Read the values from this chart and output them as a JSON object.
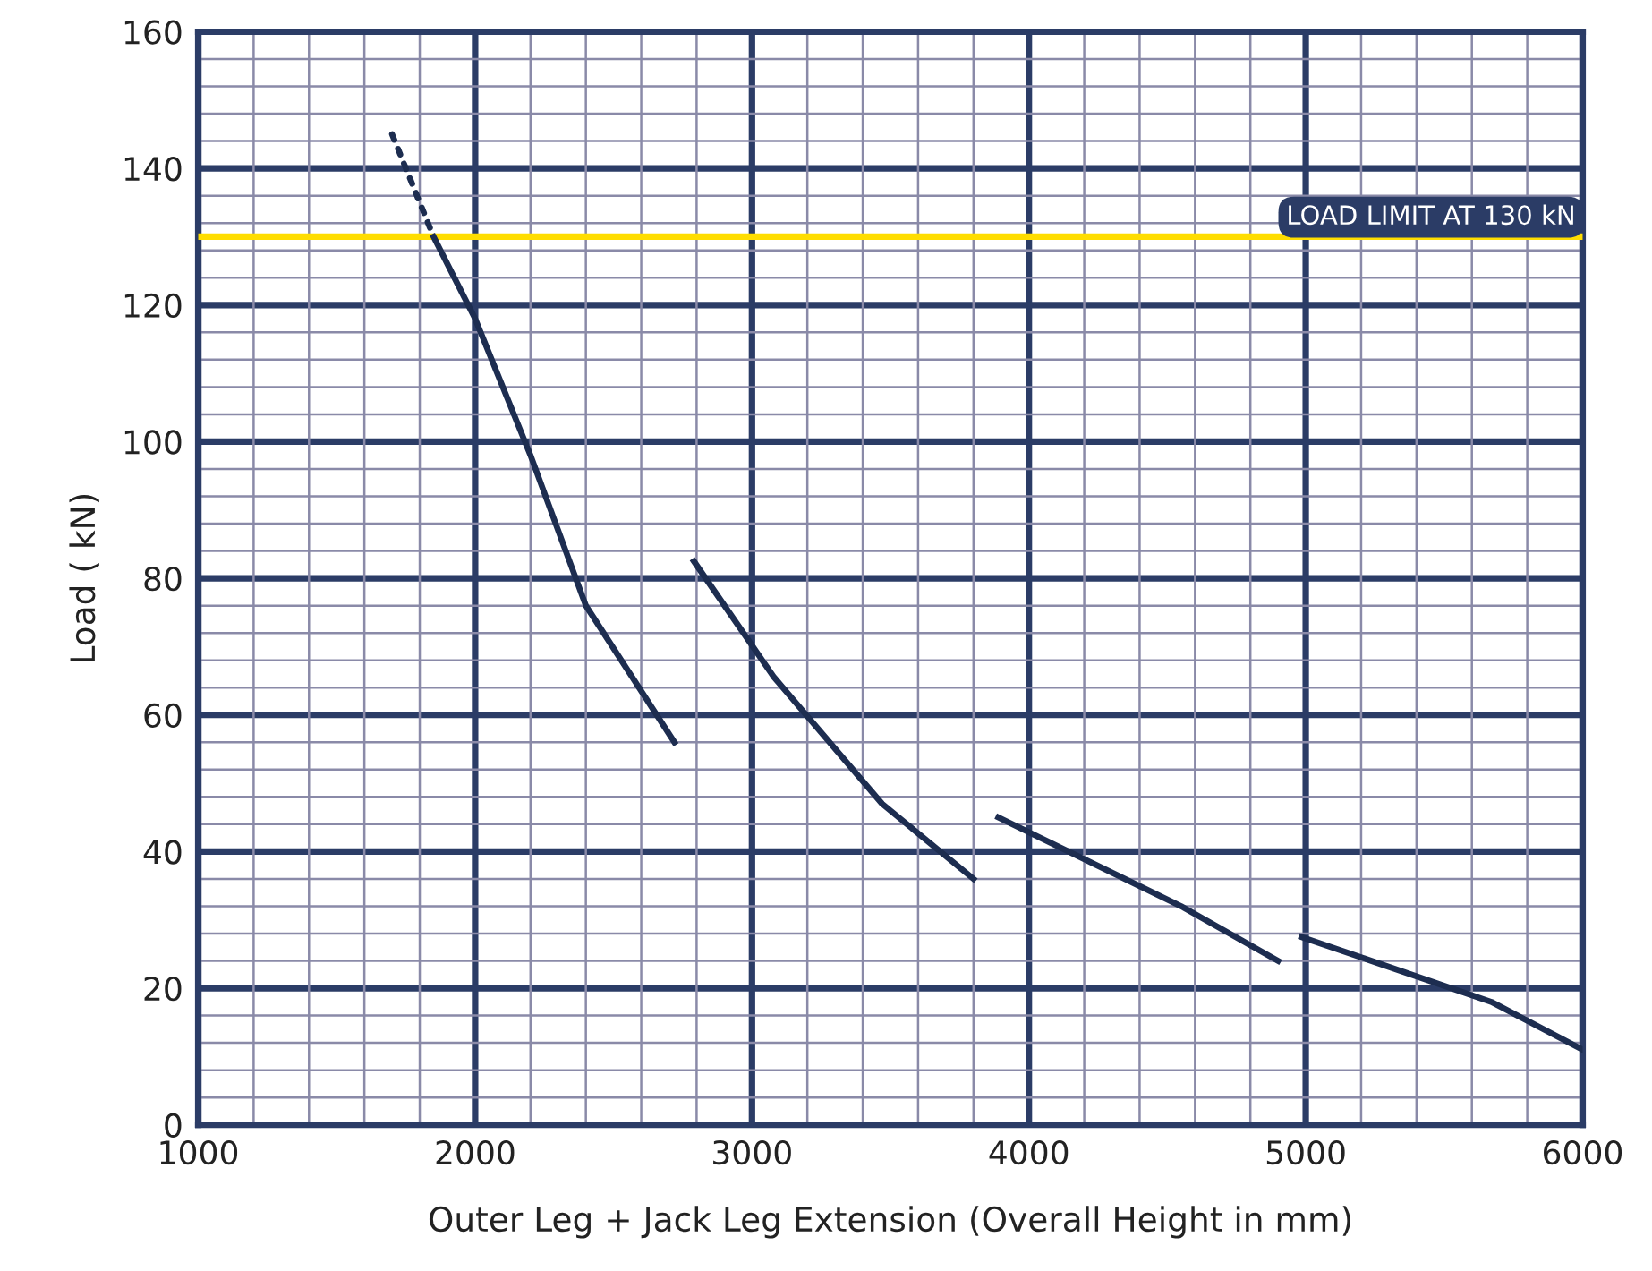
{
  "chart_data": {
    "type": "line",
    "xlabel": "Outer Leg + Jack Leg Extension (Overall Height in mm)",
    "ylabel": "Load ( kN)",
    "series": [
      {
        "color": "#1d2d50",
        "line_style": "dotted",
        "x": [
          1700,
          1850
        ],
        "values": [
          145,
          130
        ]
      },
      {
        "color": "#1d2d50",
        "x": [
          1850,
          2000,
          2200,
          2400,
          2720
        ],
        "values": [
          130,
          118,
          98,
          76,
          56
        ]
      },
      {
        "color": "#1d2d50",
        "x": [
          2790,
          3080,
          3470,
          3800
        ],
        "values": [
          82.5,
          65.5,
          47,
          36
        ]
      },
      {
        "color": "#1d2d50",
        "x": [
          3890,
          4550,
          4900
        ],
        "values": [
          45,
          32,
          24
        ]
      },
      {
        "color": "#1d2d50",
        "x": [
          4985,
          5670,
          6000
        ],
        "values": [
          27.5,
          18,
          11
        ]
      }
    ],
    "xlim": [
      1000,
      6000
    ],
    "ylim": [
      0,
      160
    ],
    "xticks": [
      1000,
      2000,
      3000,
      4000,
      5000,
      6000
    ],
    "yticks": [
      0,
      20,
      40,
      60,
      80,
      100,
      120,
      140,
      160
    ],
    "grid": true,
    "marker": "none",
    "line_style": "solid",
    "ref_lines": [
      {
        "axis": "y",
        "value": 130,
        "label": "LOAD LIMIT AT 130 kN",
        "color": "#ffdd00"
      }
    ]
  }
}
